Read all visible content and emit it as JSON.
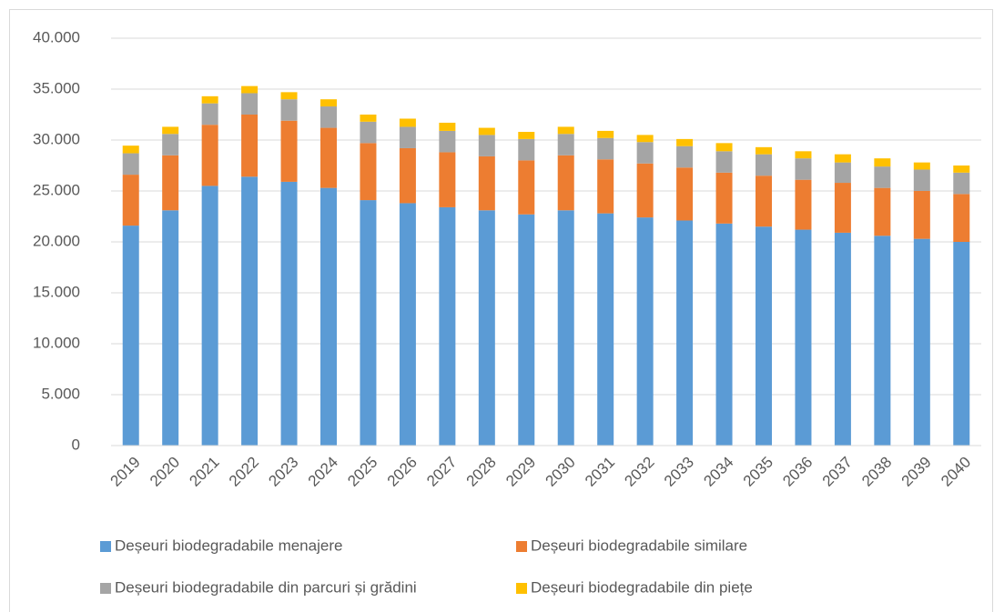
{
  "chart_data": {
    "type": "stacked_bar",
    "categories": [
      "2019",
      "2020",
      "2021",
      "2022",
      "2023",
      "2024",
      "2025",
      "2026",
      "2027",
      "2028",
      "2029",
      "2030",
      "2031",
      "2032",
      "2033",
      "2034",
      "2035",
      "2036",
      "2037",
      "2038",
      "2039",
      "2040"
    ],
    "series": [
      {
        "name": "Deșeuri biodegradabile menajere",
        "color": "#5b9bd5",
        "values": [
          21600,
          23100,
          25500,
          26400,
          25900,
          25300,
          24100,
          23800,
          23400,
          23100,
          22700,
          23100,
          22800,
          22400,
          22100,
          21800,
          21500,
          21200,
          20900,
          20600,
          20300,
          20000
        ]
      },
      {
        "name": "Deșeuri biodegradabile similare",
        "color": "#ed7d31",
        "values": [
          5000,
          5400,
          6000,
          6100,
          6000,
          5900,
          5600,
          5400,
          5400,
          5300,
          5300,
          5400,
          5300,
          5300,
          5200,
          5000,
          5000,
          4900,
          4900,
          4700,
          4700,
          4700
        ]
      },
      {
        "name": "Deșeuri biodegradabile din parcuri și grădini",
        "color": "#a5a5a5",
        "values": [
          2100,
          2100,
          2100,
          2100,
          2100,
          2100,
          2100,
          2100,
          2100,
          2100,
          2100,
          2100,
          2100,
          2100,
          2100,
          2100,
          2100,
          2100,
          2000,
          2100,
          2100,
          2100
        ]
      },
      {
        "name": "Deșeuri biodegradabile din piețe",
        "color": "#ffc000",
        "values": [
          750,
          700,
          700,
          700,
          700,
          700,
          700,
          800,
          800,
          700,
          700,
          700,
          700,
          700,
          700,
          800,
          700,
          700,
          800,
          800,
          700,
          700
        ]
      }
    ],
    "ylim": [
      0,
      40000
    ],
    "yticks": [
      0,
      {
        "value": 5000,
        "label": "5.000"
      },
      {
        "value": 10000,
        "label": "10.000"
      },
      {
        "value": 15000,
        "label": "15.000"
      },
      {
        "value": 20000,
        "label": "20.000"
      },
      {
        "value": 25000,
        "label": "25.000"
      },
      {
        "value": 30000,
        "label": "30.000"
      },
      {
        "value": 35000,
        "label": "35.000"
      },
      {
        "value": 40000,
        "label": "40.000"
      }
    ],
    "grid": true,
    "legend": "bottom"
  }
}
